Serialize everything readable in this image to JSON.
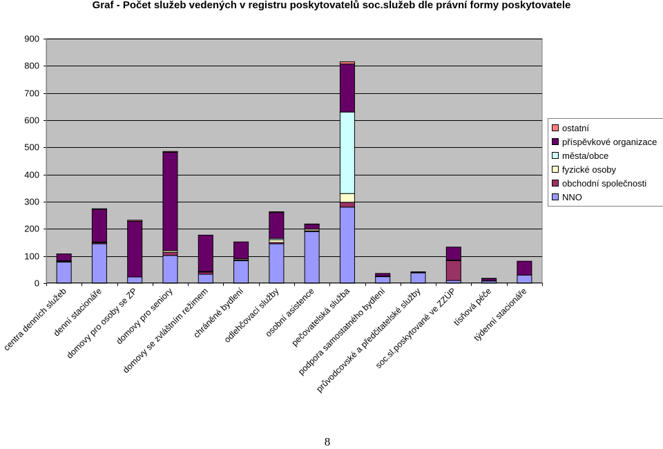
{
  "page_number": "8",
  "chart_data": {
    "type": "bar",
    "stacked": true,
    "title": "Graf - Počet služeb vedených v registru poskytovatelů soc.služeb dle právní formy poskytovatele",
    "xlabel": "",
    "ylabel": "",
    "ylim": [
      0,
      900
    ],
    "yticks": [
      "0",
      "100",
      "200",
      "300",
      "400",
      "500",
      "600",
      "700",
      "800",
      "900"
    ],
    "legend_position": "right",
    "categories": [
      "centra denních služeb",
      "denní stacionáře",
      "domovy pro osoby se ZP",
      "domovy pro seniory",
      "domovy se zvláštním režimem",
      "chráněné bydlení",
      "odlehčovací služby",
      "osobní asistence",
      "pečovatelská služba",
      "podpora samostatného bydlení",
      "průvodcovské a předčitatelské služby",
      "soc.sl.poskytované ve ZZÚP",
      "tísňová péče",
      "týdenní stacionáře"
    ],
    "series": [
      {
        "name": "NNO",
        "color": "#9999ff",
        "values": [
          78,
          145,
          23,
          102,
          33,
          83,
          145,
          190,
          280,
          24,
          38,
          10,
          8,
          30
        ]
      },
      {
        "name": "obchodní společnosti",
        "color": "#993366",
        "values": [
          3,
          4,
          0,
          12,
          8,
          3,
          5,
          3,
          18,
          2,
          0,
          73,
          1,
          0
        ]
      },
      {
        "name": "fyzické osoby",
        "color": "#ffffcc",
        "values": [
          2,
          3,
          0,
          6,
          2,
          4,
          10,
          6,
          32,
          0,
          2,
          2,
          0,
          0
        ]
      },
      {
        "name": "města/obce",
        "color": "#ccffff",
        "values": [
          0,
          0,
          0,
          0,
          0,
          0,
          5,
          0,
          300,
          0,
          0,
          0,
          0,
          0
        ]
      },
      {
        "name": "příspěvkové organizace",
        "color": "#660066",
        "values": [
          25,
          120,
          205,
          362,
          134,
          62,
          95,
          18,
          177,
          10,
          2,
          48,
          8,
          51
        ]
      },
      {
        "name": "ostatní",
        "color": "#ff8080",
        "values": [
          0,
          2,
          4,
          3,
          0,
          0,
          3,
          1,
          8,
          0,
          0,
          0,
          1,
          0
        ]
      }
    ]
  }
}
